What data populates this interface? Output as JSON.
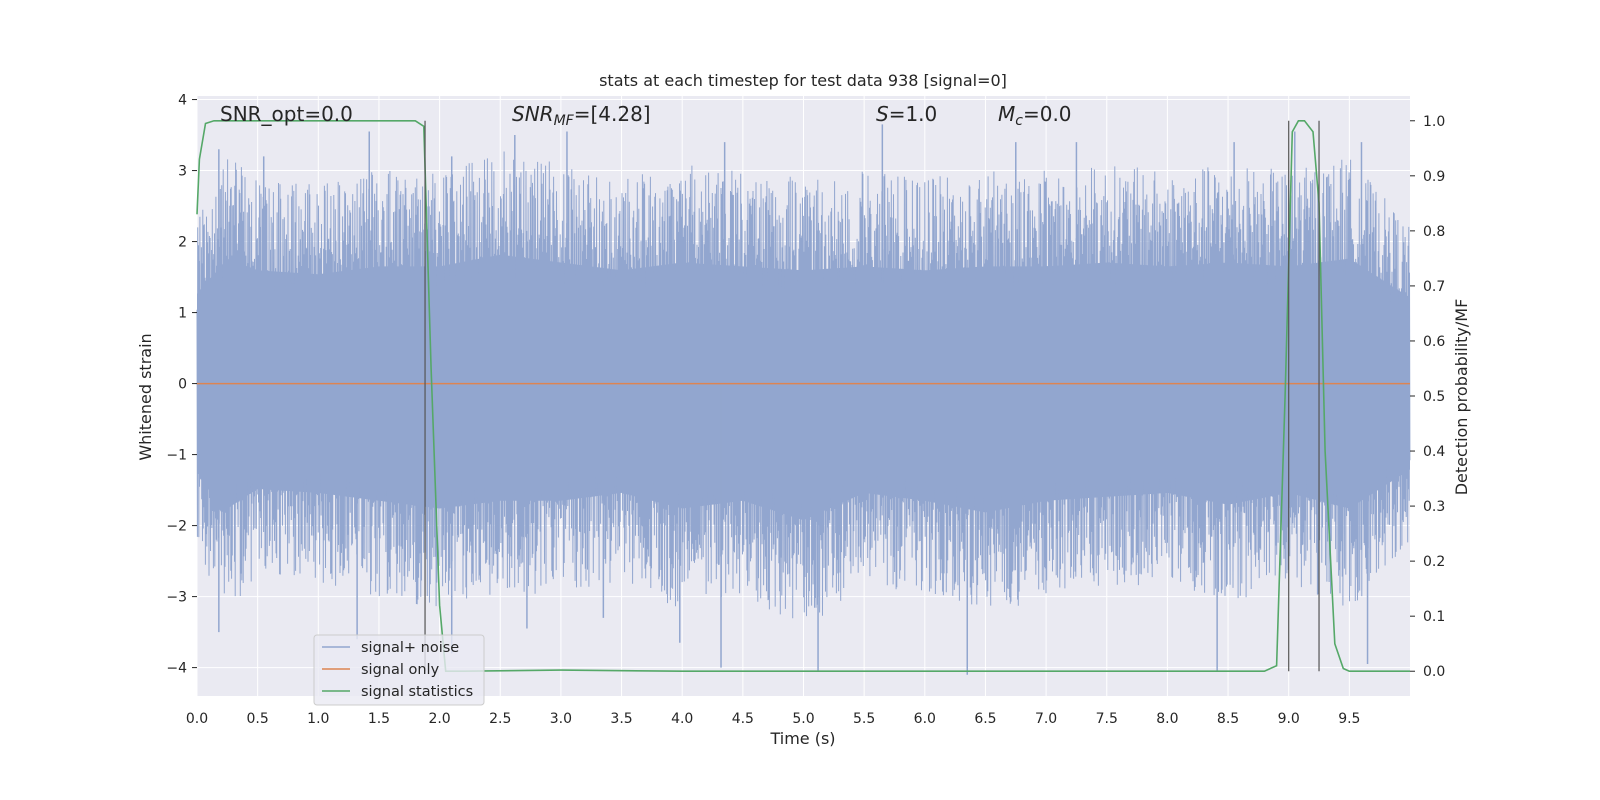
{
  "chart_data": {
    "type": "line",
    "title": "stats at each timestep for test data 938 [signal=0]",
    "xlabel": "Time (s)",
    "ylabel": "Whitened strain",
    "ylabel_right": "Detection probability/MF",
    "xlim": [
      0,
      10
    ],
    "ylim": [
      -4.4,
      4.05
    ],
    "ylim_right": [
      -0.045,
      1.045
    ],
    "x_ticks": [
      "0.0",
      "0.5",
      "1.0",
      "1.5",
      "2.0",
      "2.5",
      "3.0",
      "3.5",
      "4.0",
      "4.5",
      "5.0",
      "5.5",
      "6.0",
      "6.5",
      "7.0",
      "7.5",
      "8.0",
      "8.5",
      "9.0",
      "9.5"
    ],
    "x_tick_values": [
      0,
      0.5,
      1,
      1.5,
      2,
      2.5,
      3,
      3.5,
      4,
      4.5,
      5,
      5.5,
      6,
      6.5,
      7,
      7.5,
      8,
      8.5,
      9,
      9.5
    ],
    "y_ticks_left": [
      "4",
      "3",
      "2",
      "1",
      "0",
      "−1",
      "−2",
      "−3",
      "−4"
    ],
    "y_tick_values_left": [
      4,
      3,
      2,
      1,
      0,
      -1,
      -2,
      -3,
      -4
    ],
    "y_ticks_right": [
      "1.0",
      "0.9",
      "0.8",
      "0.7",
      "0.6",
      "0.5",
      "0.4",
      "0.3",
      "0.2",
      "0.1",
      "0.0"
    ],
    "y_tick_values_right": [
      1.0,
      0.9,
      0.8,
      0.7,
      0.6,
      0.5,
      0.4,
      0.3,
      0.2,
      0.1,
      0.0
    ],
    "grid": true,
    "legend_placement": "lower-left",
    "annotations": {
      "snr_opt": "SNR_opt=0.0",
      "snr_mf_base": "SNR",
      "snr_mf_sub": "MF",
      "snr_mf_value": "=[4.28]",
      "s_base": "S",
      "s_value": "=1.0",
      "mc_base": "M",
      "mc_sub": "c",
      "mc_value": "=0.0"
    },
    "vertical_lines_x": [
      1.88,
      9.0,
      9.25
    ],
    "series": [
      {
        "name": "signal+ noise",
        "color": "#92a6cf",
        "axis": "left",
        "envelope_upper": [
          [
            0,
            2.3
          ],
          [
            0.25,
            3.2
          ],
          [
            0.5,
            2.9
          ],
          [
            1.0,
            2.8
          ],
          [
            1.5,
            3.0
          ],
          [
            2.0,
            3.0
          ],
          [
            2.5,
            3.3
          ],
          [
            3.0,
            3.1
          ],
          [
            3.5,
            2.9
          ],
          [
            4.0,
            3.1
          ],
          [
            4.5,
            3.0
          ],
          [
            5.0,
            2.9
          ],
          [
            5.5,
            3.0
          ],
          [
            6.0,
            2.9
          ],
          [
            6.5,
            3.0
          ],
          [
            7.0,
            3.0
          ],
          [
            7.5,
            3.1
          ],
          [
            8.0,
            3.0
          ],
          [
            8.5,
            3.1
          ],
          [
            9.0,
            3.0
          ],
          [
            9.5,
            3.2
          ],
          [
            10.0,
            2.2
          ]
        ],
        "envelope_lower": [
          [
            0,
            -2.2
          ],
          [
            0.2,
            -3.3
          ],
          [
            0.5,
            -2.7
          ],
          [
            1.0,
            -2.8
          ],
          [
            1.5,
            -3.0
          ],
          [
            2.0,
            -3.2
          ],
          [
            2.5,
            -3.0
          ],
          [
            3.0,
            -3.0
          ],
          [
            3.5,
            -2.8
          ],
          [
            4.0,
            -3.2
          ],
          [
            4.5,
            -3.0
          ],
          [
            5.0,
            -3.5
          ],
          [
            5.5,
            -2.8
          ],
          [
            6.0,
            -3.0
          ],
          [
            6.5,
            -3.3
          ],
          [
            7.0,
            -3.0
          ],
          [
            7.5,
            -2.9
          ],
          [
            8.0,
            -2.8
          ],
          [
            8.5,
            -3.1
          ],
          [
            9.0,
            -2.8
          ],
          [
            9.5,
            -3.2
          ],
          [
            10.0,
            -2.2
          ]
        ],
        "spikes_upper": [
          [
            0.18,
            3.3
          ],
          [
            0.55,
            3.2
          ],
          [
            1.42,
            3.55
          ],
          [
            2.1,
            3.2
          ],
          [
            2.62,
            3.5
          ],
          [
            3.05,
            3.55
          ],
          [
            4.35,
            3.4
          ],
          [
            5.65,
            3.65
          ],
          [
            6.75,
            3.4
          ],
          [
            7.25,
            3.4
          ],
          [
            8.55,
            3.4
          ],
          [
            9.05,
            3.55
          ],
          [
            9.6,
            3.4
          ]
        ],
        "spikes_lower": [
          [
            0.18,
            -3.5
          ],
          [
            1.32,
            -3.6
          ],
          [
            2.1,
            -3.8
          ],
          [
            2.72,
            -3.45
          ],
          [
            3.35,
            -3.3
          ],
          [
            3.98,
            -3.65
          ],
          [
            4.32,
            -4.0
          ],
          [
            5.12,
            -4.05
          ],
          [
            6.35,
            -4.1
          ],
          [
            8.41,
            -4.05
          ],
          [
            9.65,
            -3.95
          ]
        ]
      },
      {
        "name": "signal only",
        "color": "#dd8452",
        "axis": "left",
        "x": [
          0,
          10
        ],
        "y": [
          0,
          0
        ]
      },
      {
        "name": "signal statistics",
        "color": "#55a868",
        "axis": "right",
        "x": [
          0.0,
          0.02,
          0.07,
          0.14,
          0.5,
          1.0,
          1.5,
          1.8,
          1.87,
          1.93,
          2.0,
          2.05,
          2.2,
          3.0,
          4.0,
          5.0,
          6.0,
          7.0,
          8.0,
          8.8,
          8.9,
          8.97,
          9.03,
          9.08,
          9.13,
          9.2,
          9.25,
          9.3,
          9.38,
          9.45,
          9.5,
          10.0
        ],
        "y": [
          0.83,
          0.93,
          0.995,
          1.0,
          1.0,
          1.0,
          1.0,
          1.0,
          0.99,
          0.55,
          0.12,
          0.0,
          0.0,
          0.002,
          0.0,
          0.0,
          0.0,
          0.0,
          0.0,
          0.0,
          0.01,
          0.5,
          0.98,
          1.0,
          1.0,
          0.98,
          0.85,
          0.4,
          0.05,
          0.005,
          0.0,
          0.0
        ]
      }
    ]
  }
}
